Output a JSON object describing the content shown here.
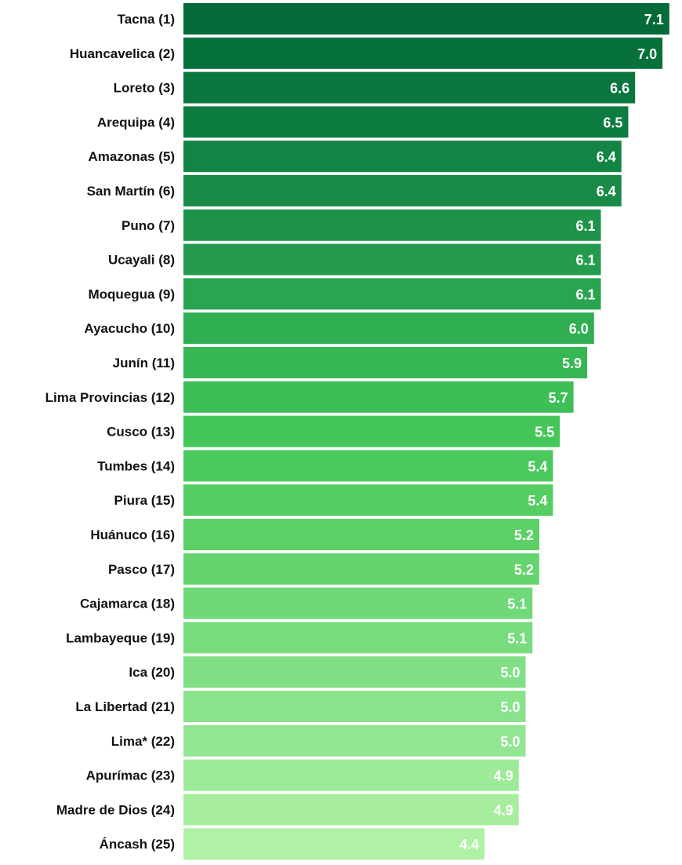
{
  "chart_data": {
    "type": "bar",
    "orientation": "horizontal",
    "title": "",
    "xlabel": "",
    "ylabel": "",
    "xlim": [
      0,
      7.1
    ],
    "grid": false,
    "legend": "none",
    "categories": [
      "Tacna (1)",
      "Huancavelica (2)",
      "Loreto (3)",
      "Arequipa (4)",
      "Amazonas (5)",
      "San Martín (6)",
      "Puno (7)",
      "Ucayali (8)",
      "Moquegua (9)",
      "Ayacucho (10)",
      "Junín (11)",
      "Lima Provincias (12)",
      "Cusco (13)",
      "Tumbes (14)",
      "Piura (15)",
      "Huánuco (16)",
      "Pasco (17)",
      "Cajamarca (18)",
      "Lambayeque (19)",
      "Ica (20)",
      "La Libertad (21)",
      "Lima* (22)",
      "Apurímac (23)",
      "Madre de Dios (24)",
      "Áncash (25)"
    ],
    "values": [
      7.1,
      7.0,
      6.6,
      6.5,
      6.4,
      6.4,
      6.1,
      6.1,
      6.1,
      6.0,
      5.9,
      5.7,
      5.5,
      5.4,
      5.4,
      5.2,
      5.2,
      5.1,
      5.1,
      5.0,
      5.0,
      5.0,
      4.9,
      4.9,
      4.4
    ],
    "value_labels": [
      "7.1",
      "7.0",
      "6.6",
      "6.5",
      "6.4",
      "6.4",
      "6.1",
      "6.1",
      "6.1",
      "6.0",
      "5.9",
      "5.7",
      "5.5",
      "5.4",
      "5.4",
      "5.2",
      "5.2",
      "5.1",
      "5.1",
      "5.0",
      "5.0",
      "5.0",
      "4.9",
      "4.9",
      "4.4"
    ],
    "bar_color_gradient": [
      "#046b38",
      "#0d7c40",
      "#1f934a",
      "#30ae52",
      "#44c658",
      "#5cd067",
      "#78dc7f",
      "#93e691",
      "#b0f2a5"
    ]
  }
}
